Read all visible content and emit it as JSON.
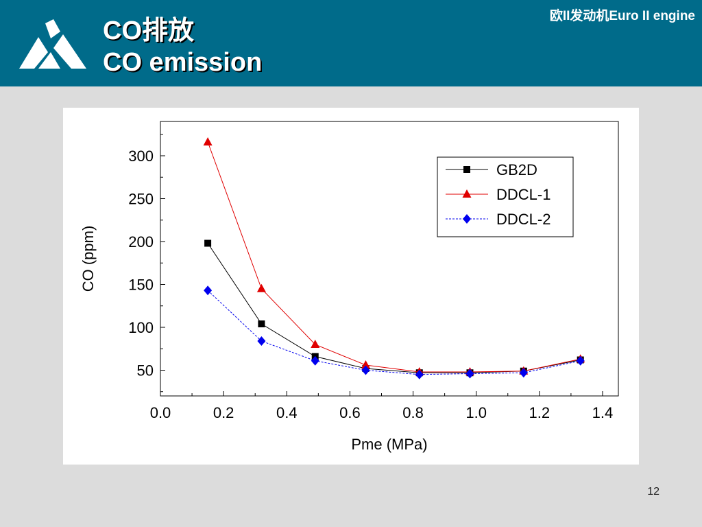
{
  "header": {
    "title_line1": "CO排放",
    "title_line2": "CO emission",
    "top_right": "欧II发动机Euro II engine",
    "logo_icon": "company-logo-icon",
    "colors": {
      "bar": "#006b8a",
      "title": "#ffffff"
    }
  },
  "footer": {
    "page_number": "12"
  },
  "chart_data": {
    "type": "line",
    "xlabel": "Pme (MPa)",
    "ylabel": "CO (ppm)",
    "xlim": [
      0.0,
      1.45
    ],
    "ylim": [
      20,
      340
    ],
    "xticks": [
      "0.0",
      "0.2",
      "0.4",
      "0.6",
      "0.8",
      "1.0",
      "1.2",
      "1.4"
    ],
    "yticks": [
      "50",
      "100",
      "150",
      "200",
      "250",
      "300"
    ],
    "legend_position": "top-right",
    "series": [
      {
        "name": "GB2D",
        "color": "#000000",
        "marker": "square",
        "line": "solid",
        "x": [
          0.15,
          0.32,
          0.49,
          0.65,
          0.82,
          0.98,
          1.15,
          1.33
        ],
        "y": [
          198,
          104,
          66,
          52,
          47,
          47,
          49,
          62
        ]
      },
      {
        "name": "DDCL-1",
        "color": "#e00000",
        "marker": "triangle",
        "line": "solid",
        "x": [
          0.15,
          0.32,
          0.49,
          0.65,
          0.82,
          0.98,
          1.15,
          1.33
        ],
        "y": [
          316,
          145,
          80,
          56,
          48,
          48,
          49,
          63
        ]
      },
      {
        "name": "DDCL-2",
        "color": "#0000ee",
        "marker": "diamond",
        "line": "dashed",
        "x": [
          0.15,
          0.32,
          0.49,
          0.65,
          0.82,
          0.98,
          1.15,
          1.33
        ],
        "y": [
          143,
          84,
          61,
          50,
          45,
          46,
          47,
          61
        ]
      }
    ]
  }
}
